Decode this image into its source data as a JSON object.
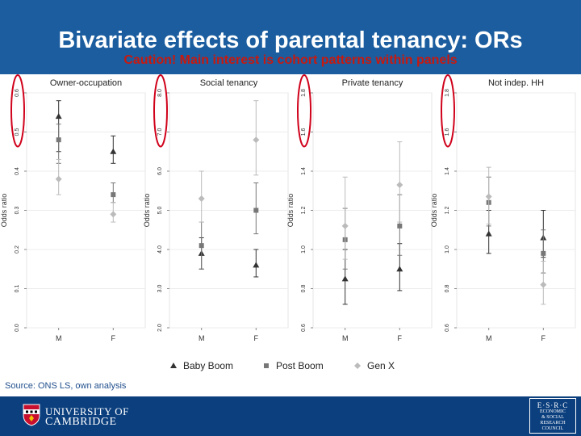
{
  "slide": {
    "title": "Bivariate effects of parental tenancy: ORs",
    "caution": "Caution! Main interest is cohort patterns within panels",
    "source": "Source: ONS LS, own analysis"
  },
  "logos": {
    "university_line1": "UNIVERSITY OF",
    "university_line2": "CAMBRIDGE",
    "esrc_lines": [
      "E·S·R·C",
      "ECONOMIC",
      "& SOCIAL",
      "RESEARCH",
      "COUNCIL"
    ]
  },
  "colors": {
    "header_band": "#1b5d9f",
    "footer_band": "#0b3f7e",
    "caution_text": "#c8190f",
    "highlight_ellipse": "#d0021b",
    "baby_boom": "#333333",
    "post_boom": "#777777",
    "gen_x": "#bbbbbb"
  },
  "legend": [
    {
      "label": "Baby Boom",
      "marker": "triangle"
    },
    {
      "label": "Post Boom",
      "marker": "square"
    },
    {
      "label": "Gen X",
      "marker": "diamond"
    }
  ],
  "chart_data": [
    {
      "type": "scatter",
      "title": "Owner-occupation",
      "ylabel": "Odds ratio",
      "categories": [
        "M",
        "F"
      ],
      "ylim": [
        0.0,
        0.6
      ],
      "yticks": [
        0.0,
        0.1,
        0.2,
        0.3,
        0.4,
        0.5,
        0.6
      ],
      "ytick_labels": [
        "0.0",
        "0.1",
        "0.2",
        "0.3",
        "0.4",
        "0.5",
        "0.6"
      ],
      "highlight_ticks": [
        "0.5",
        "0.6"
      ],
      "series": [
        {
          "name": "Baby Boom",
          "values": [
            0.54,
            0.45
          ],
          "ci_low": [
            0.45,
            0.42
          ],
          "ci_high": [
            0.58,
            0.49
          ]
        },
        {
          "name": "Post Boom",
          "values": [
            0.48,
            0.34
          ],
          "ci_low": [
            0.42,
            0.32
          ],
          "ci_high": [
            0.52,
            0.37
          ]
        },
        {
          "name": "Gen X",
          "values": [
            0.38,
            0.29
          ],
          "ci_low": [
            0.34,
            0.27
          ],
          "ci_high": [
            0.43,
            0.32
          ]
        }
      ]
    },
    {
      "type": "scatter",
      "title": "Social tenancy",
      "ylabel": "Odds ratio",
      "categories": [
        "M",
        "F"
      ],
      "ylim": [
        2.0,
        8.0
      ],
      "yticks": [
        2.0,
        3.0,
        4.0,
        5.0,
        6.0,
        7.0,
        8.0
      ],
      "ytick_labels": [
        "2.0",
        "3.0",
        "4.0",
        "5.0",
        "6.0",
        "7.0",
        "8.0"
      ],
      "highlight_ticks": [
        "7.0",
        "8.0"
      ],
      "series": [
        {
          "name": "Baby Boom",
          "values": [
            3.9,
            3.6
          ],
          "ci_low": [
            3.5,
            3.3
          ],
          "ci_high": [
            4.3,
            4.0
          ]
        },
        {
          "name": "Post Boom",
          "values": [
            4.1,
            5.0
          ],
          "ci_low": [
            3.5,
            4.4
          ],
          "ci_high": [
            4.7,
            5.7
          ]
        },
        {
          "name": "Gen X",
          "values": [
            5.3,
            6.8
          ],
          "ci_low": [
            4.7,
            5.9
          ],
          "ci_high": [
            6.0,
            7.8
          ]
        }
      ]
    },
    {
      "type": "scatter",
      "title": "Private tenancy",
      "ylabel": "Odds ratio",
      "categories": [
        "M",
        "F"
      ],
      "ylim": [
        0.6,
        1.8
      ],
      "yticks": [
        0.6,
        0.8,
        1.0,
        1.2,
        1.4,
        1.6,
        1.8
      ],
      "ytick_labels": [
        "0.6",
        "0.8",
        "1.0",
        "1.2",
        "1.4",
        "1.6",
        "1.8"
      ],
      "highlight_ticks": [
        "1.6",
        "1.8"
      ],
      "series": [
        {
          "name": "Baby Boom",
          "values": [
            0.85,
            0.9
          ],
          "ci_low": [
            0.72,
            0.79
          ],
          "ci_high": [
            1.0,
            1.03
          ]
        },
        {
          "name": "Post Boom",
          "values": [
            1.05,
            1.12
          ],
          "ci_low": [
            0.9,
            0.97
          ],
          "ci_high": [
            1.21,
            1.28
          ]
        },
        {
          "name": "Gen X",
          "values": [
            1.12,
            1.33
          ],
          "ci_low": [
            0.95,
            1.14
          ],
          "ci_high": [
            1.37,
            1.55
          ]
        }
      ]
    },
    {
      "type": "scatter",
      "title": "Not indep. HH",
      "ylabel": "Odds ratio",
      "categories": [
        "M",
        "F"
      ],
      "ylim": [
        0.6,
        1.8
      ],
      "yticks": [
        0.6,
        0.8,
        1.0,
        1.2,
        1.4,
        1.6,
        1.8
      ],
      "ytick_labels": [
        "0.6",
        "0.8",
        "1.0",
        "1.2",
        "1.4",
        "1.6",
        "1.8"
      ],
      "highlight_ticks": [
        "1.6",
        "1.8"
      ],
      "series": [
        {
          "name": "Baby Boom",
          "values": [
            1.08,
            1.06
          ],
          "ci_low": [
            0.98,
            0.96
          ],
          "ci_high": [
            1.2,
            1.2
          ]
        },
        {
          "name": "Post Boom",
          "values": [
            1.24,
            0.98
          ],
          "ci_low": [
            1.12,
            0.88
          ],
          "ci_high": [
            1.37,
            1.1
          ]
        },
        {
          "name": "Gen X",
          "values": [
            1.27,
            0.82
          ],
          "ci_low": [
            1.13,
            0.72
          ],
          "ci_high": [
            1.42,
            0.94
          ]
        }
      ]
    }
  ]
}
